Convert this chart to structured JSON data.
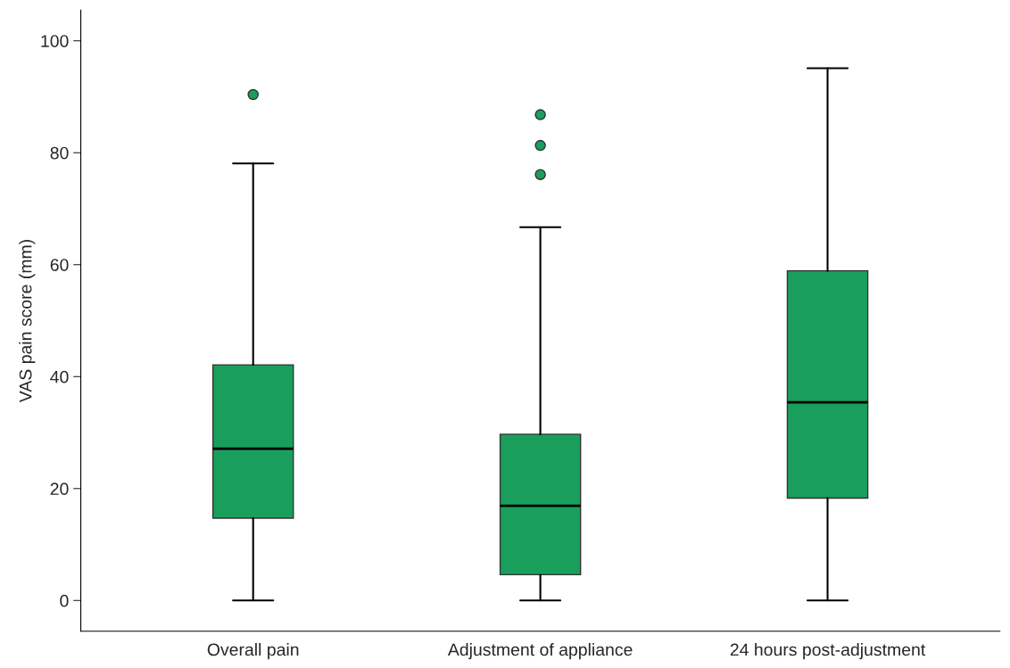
{
  "chart_data": {
    "type": "box",
    "ylabel": "VAS pain score (mm)",
    "categories": [
      "Overall pain",
      "Adjustment of appliance",
      "24 hours post-adjustment"
    ],
    "boxes": [
      {
        "low": 0,
        "q1": 14.7,
        "median": 27.1,
        "q3": 42.1,
        "high": 78.1,
        "outliers": [
          90.4
        ]
      },
      {
        "low": 0,
        "q1": 4.6,
        "median": 16.9,
        "q3": 29.7,
        "high": 66.7,
        "outliers": [
          76.1,
          81.3,
          86.8
        ]
      },
      {
        "low": 0,
        "q1": 18.3,
        "median": 35.4,
        "q3": 58.9,
        "high": 95.1
      }
    ],
    "color": "#1a9e5c",
    "ylim": [
      -5.5,
      105.5
    ],
    "yticks": [
      0,
      20,
      40,
      60,
      80,
      100
    ],
    "grid": false,
    "legend": false
  }
}
